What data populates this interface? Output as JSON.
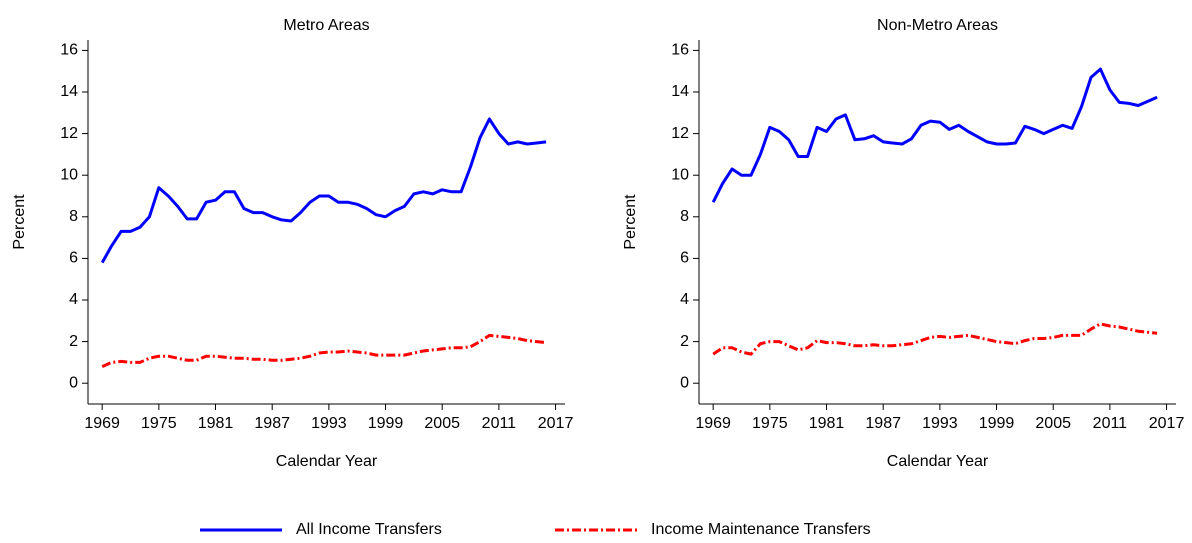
{
  "chart_data": [
    {
      "type": "line",
      "title": "Metro Areas",
      "xlabel": "Calendar Year",
      "ylabel": "Percent",
      "x": [
        1969,
        1970,
        1971,
        1972,
        1973,
        1974,
        1975,
        1976,
        1977,
        1978,
        1979,
        1980,
        1981,
        1982,
        1983,
        1984,
        1985,
        1986,
        1987,
        1988,
        1989,
        1990,
        1991,
        1992,
        1993,
        1994,
        1995,
        1996,
        1997,
        1998,
        1999,
        2000,
        2001,
        2002,
        2003,
        2004,
        2005,
        2006,
        2007,
        2008,
        2009,
        2010,
        2011,
        2012,
        2013,
        2014,
        2015,
        2016
      ],
      "xlim": [
        1967.5,
        2018
      ],
      "xticks": [
        1969,
        1975,
        1981,
        1987,
        1993,
        1999,
        2005,
        2011,
        2017
      ],
      "ylim": [
        -1,
        16.5
      ],
      "yticks": [
        0,
        2,
        4,
        6,
        8,
        10,
        12,
        14,
        16
      ],
      "series": [
        {
          "name": "All Income Transfers",
          "color": "#0000ff",
          "dash": "none",
          "values": [
            5.8,
            6.6,
            7.3,
            7.3,
            7.5,
            8.0,
            9.4,
            9.0,
            8.5,
            7.9,
            7.9,
            8.7,
            8.8,
            9.2,
            9.2,
            8.4,
            8.2,
            8.2,
            8.0,
            7.85,
            7.8,
            8.2,
            8.7,
            9.0,
            9.0,
            8.7,
            8.7,
            8.6,
            8.4,
            8.1,
            8.0,
            8.3,
            8.5,
            9.1,
            9.2,
            9.1,
            9.3,
            9.2,
            9.2,
            10.4,
            11.8,
            12.7,
            12.0,
            11.5,
            11.6,
            11.5,
            11.55,
            11.6
          ]
        },
        {
          "name": "Income Maintenance Transfers",
          "color": "#ff0000",
          "dash": "9,3,2,3",
          "values": [
            0.8,
            1.0,
            1.05,
            1.0,
            1.0,
            1.2,
            1.3,
            1.3,
            1.2,
            1.1,
            1.1,
            1.3,
            1.3,
            1.25,
            1.2,
            1.2,
            1.15,
            1.15,
            1.1,
            1.1,
            1.15,
            1.2,
            1.3,
            1.45,
            1.5,
            1.5,
            1.55,
            1.5,
            1.45,
            1.35,
            1.35,
            1.35,
            1.35,
            1.45,
            1.55,
            1.6,
            1.65,
            1.7,
            1.7,
            1.75,
            2.0,
            2.3,
            2.25,
            2.2,
            2.15,
            2.05,
            2.0,
            1.95
          ]
        }
      ]
    },
    {
      "type": "line",
      "title": "Non-Metro Areas",
      "xlabel": "Calendar Year",
      "ylabel": "Percent",
      "x": [
        1969,
        1970,
        1971,
        1972,
        1973,
        1974,
        1975,
        1976,
        1977,
        1978,
        1979,
        1980,
        1981,
        1982,
        1983,
        1984,
        1985,
        1986,
        1987,
        1988,
        1989,
        1990,
        1991,
        1992,
        1993,
        1994,
        1995,
        1996,
        1997,
        1998,
        1999,
        2000,
        2001,
        2002,
        2003,
        2004,
        2005,
        2006,
        2007,
        2008,
        2009,
        2010,
        2011,
        2012,
        2013,
        2014,
        2015,
        2016
      ],
      "xlim": [
        1967.5,
        2018
      ],
      "xticks": [
        1969,
        1975,
        1981,
        1987,
        1993,
        1999,
        2005,
        2011,
        2017
      ],
      "ylim": [
        -1,
        16.5
      ],
      "yticks": [
        0,
        2,
        4,
        6,
        8,
        10,
        12,
        14,
        16
      ],
      "series": [
        {
          "color": "#0000ff",
          "dash": "none",
          "values": [
            8.7,
            9.6,
            10.3,
            10.0,
            10.0,
            11.0,
            12.3,
            12.1,
            11.7,
            10.9,
            10.9,
            12.3,
            12.1,
            12.7,
            12.9,
            11.7,
            11.75,
            11.9,
            11.6,
            11.55,
            11.5,
            11.75,
            12.4,
            12.6,
            12.55,
            12.2,
            12.4,
            12.1,
            11.85,
            11.6,
            11.5,
            11.5,
            11.55,
            12.35,
            12.2,
            12.0,
            12.2,
            12.4,
            12.25,
            13.3,
            14.7,
            15.1,
            14.1,
            13.5,
            13.45,
            13.35,
            13.55,
            13.75
          ]
        },
        {
          "color": "#ff0000",
          "dash": "9,3,2,3",
          "values": [
            1.4,
            1.7,
            1.7,
            1.5,
            1.4,
            1.9,
            2.0,
            2.0,
            1.8,
            1.6,
            1.7,
            2.05,
            1.95,
            1.95,
            1.9,
            1.8,
            1.8,
            1.85,
            1.8,
            1.8,
            1.85,
            1.9,
            2.05,
            2.2,
            2.25,
            2.2,
            2.25,
            2.3,
            2.2,
            2.1,
            2.0,
            1.95,
            1.9,
            2.05,
            2.15,
            2.15,
            2.2,
            2.3,
            2.3,
            2.3,
            2.6,
            2.85,
            2.75,
            2.7,
            2.6,
            2.5,
            2.45,
            2.4
          ]
        }
      ]
    }
  ]
}
